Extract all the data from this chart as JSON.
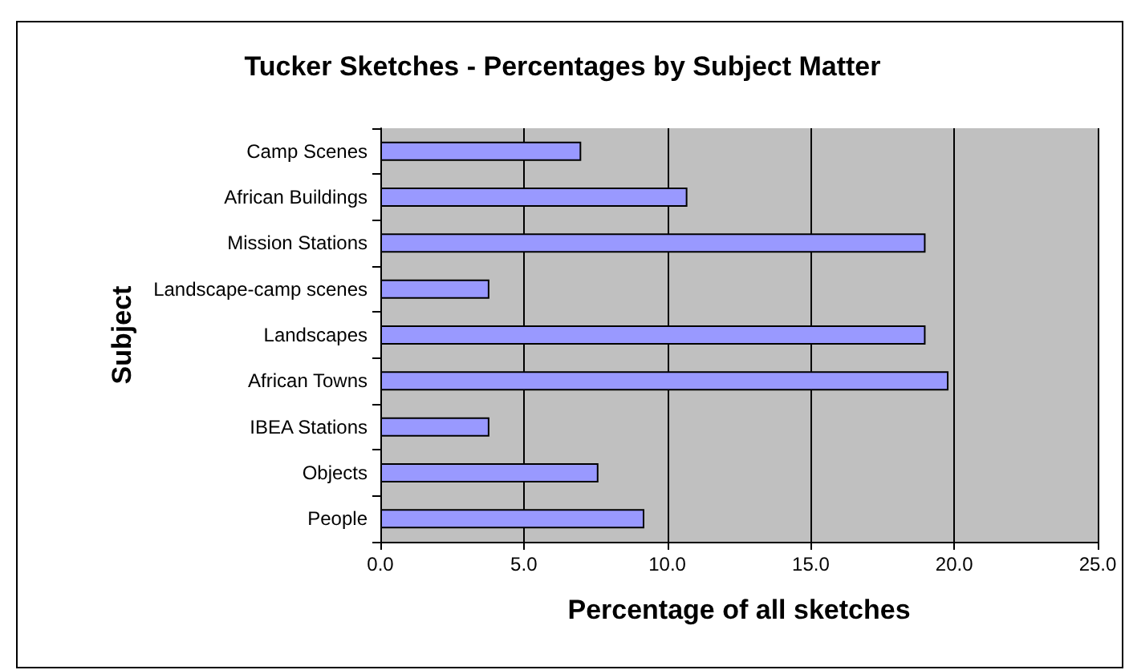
{
  "chart_data": {
    "type": "bar",
    "orientation": "horizontal",
    "title": "Tucker Sketches - Percentages by Subject Matter",
    "xlabel": "Percentage of all sketches",
    "ylabel": "Subject",
    "categories": [
      "Camp Scenes",
      "African Buildings",
      "Mission Stations",
      "Landscape-camp scenes",
      "Landscapes",
      "African Towns",
      "IBEA Stations",
      "Objects",
      "People"
    ],
    "values": [
      7.0,
      10.7,
      19.0,
      3.8,
      19.0,
      19.8,
      3.8,
      7.6,
      9.2
    ],
    "color": "#9999ff",
    "xlim": [
      0,
      25
    ],
    "xticks": [
      {
        "value": 0,
        "label": "0.0"
      },
      {
        "value": 5,
        "label": "5.0"
      },
      {
        "value": 10,
        "label": "10.0"
      },
      {
        "value": 15,
        "label": "15.0"
      },
      {
        "value": 20,
        "label": "20.0"
      },
      {
        "value": 25,
        "label": "25.0"
      }
    ],
    "grid": "x"
  }
}
